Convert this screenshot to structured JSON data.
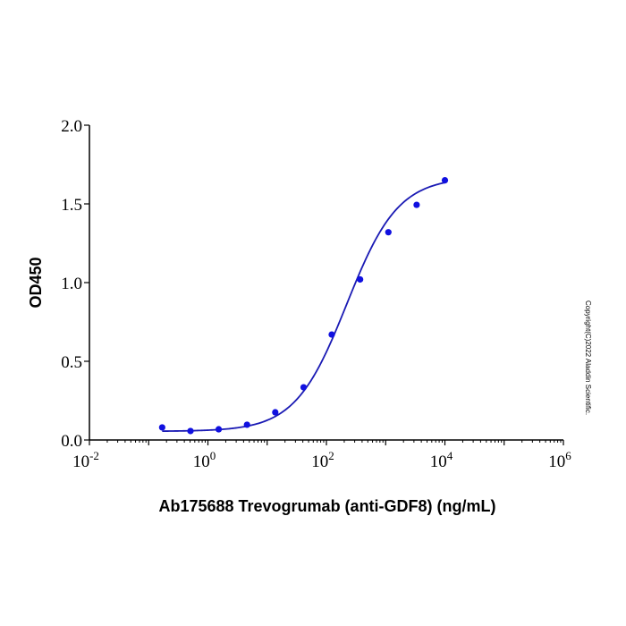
{
  "chart_data": {
    "type": "scatter",
    "title": "",
    "xlabel": "Ab175688 Trevogrumab (anti-GDF8) (ng/mL)",
    "ylabel": "OD450",
    "x_scale": "log",
    "xlim": [
      0.01,
      1000000
    ],
    "ylim": [
      0,
      2.0
    ],
    "x_ticks": [
      {
        "base": "10",
        "exp": "-2",
        "value": 0.01
      },
      {
        "base": "10",
        "exp": "0",
        "value": 1
      },
      {
        "base": "10",
        "exp": "2",
        "value": 100
      },
      {
        "base": "10",
        "exp": "4",
        "value": 10000
      },
      {
        "base": "10",
        "exp": "6",
        "value": 1000000
      }
    ],
    "y_ticks": [
      "0.0",
      "0.5",
      "1.0",
      "1.5",
      "2.0"
    ],
    "grid": false,
    "fit_curve": "4-parameter logistic",
    "series": [
      {
        "color": "#1010e0",
        "curve_color": "#1a1ab4",
        "x": [
          0.169,
          0.508,
          1.52,
          4.57,
          13.7,
          41.2,
          123,
          370,
          1111,
          3333,
          10000
        ],
        "y": [
          0.08,
          0.057,
          0.068,
          0.097,
          0.176,
          0.335,
          0.67,
          1.02,
          1.32,
          1.494,
          1.65
        ]
      }
    ]
  },
  "copyright": "Copyright(C)2022 Aladdin Scientific."
}
